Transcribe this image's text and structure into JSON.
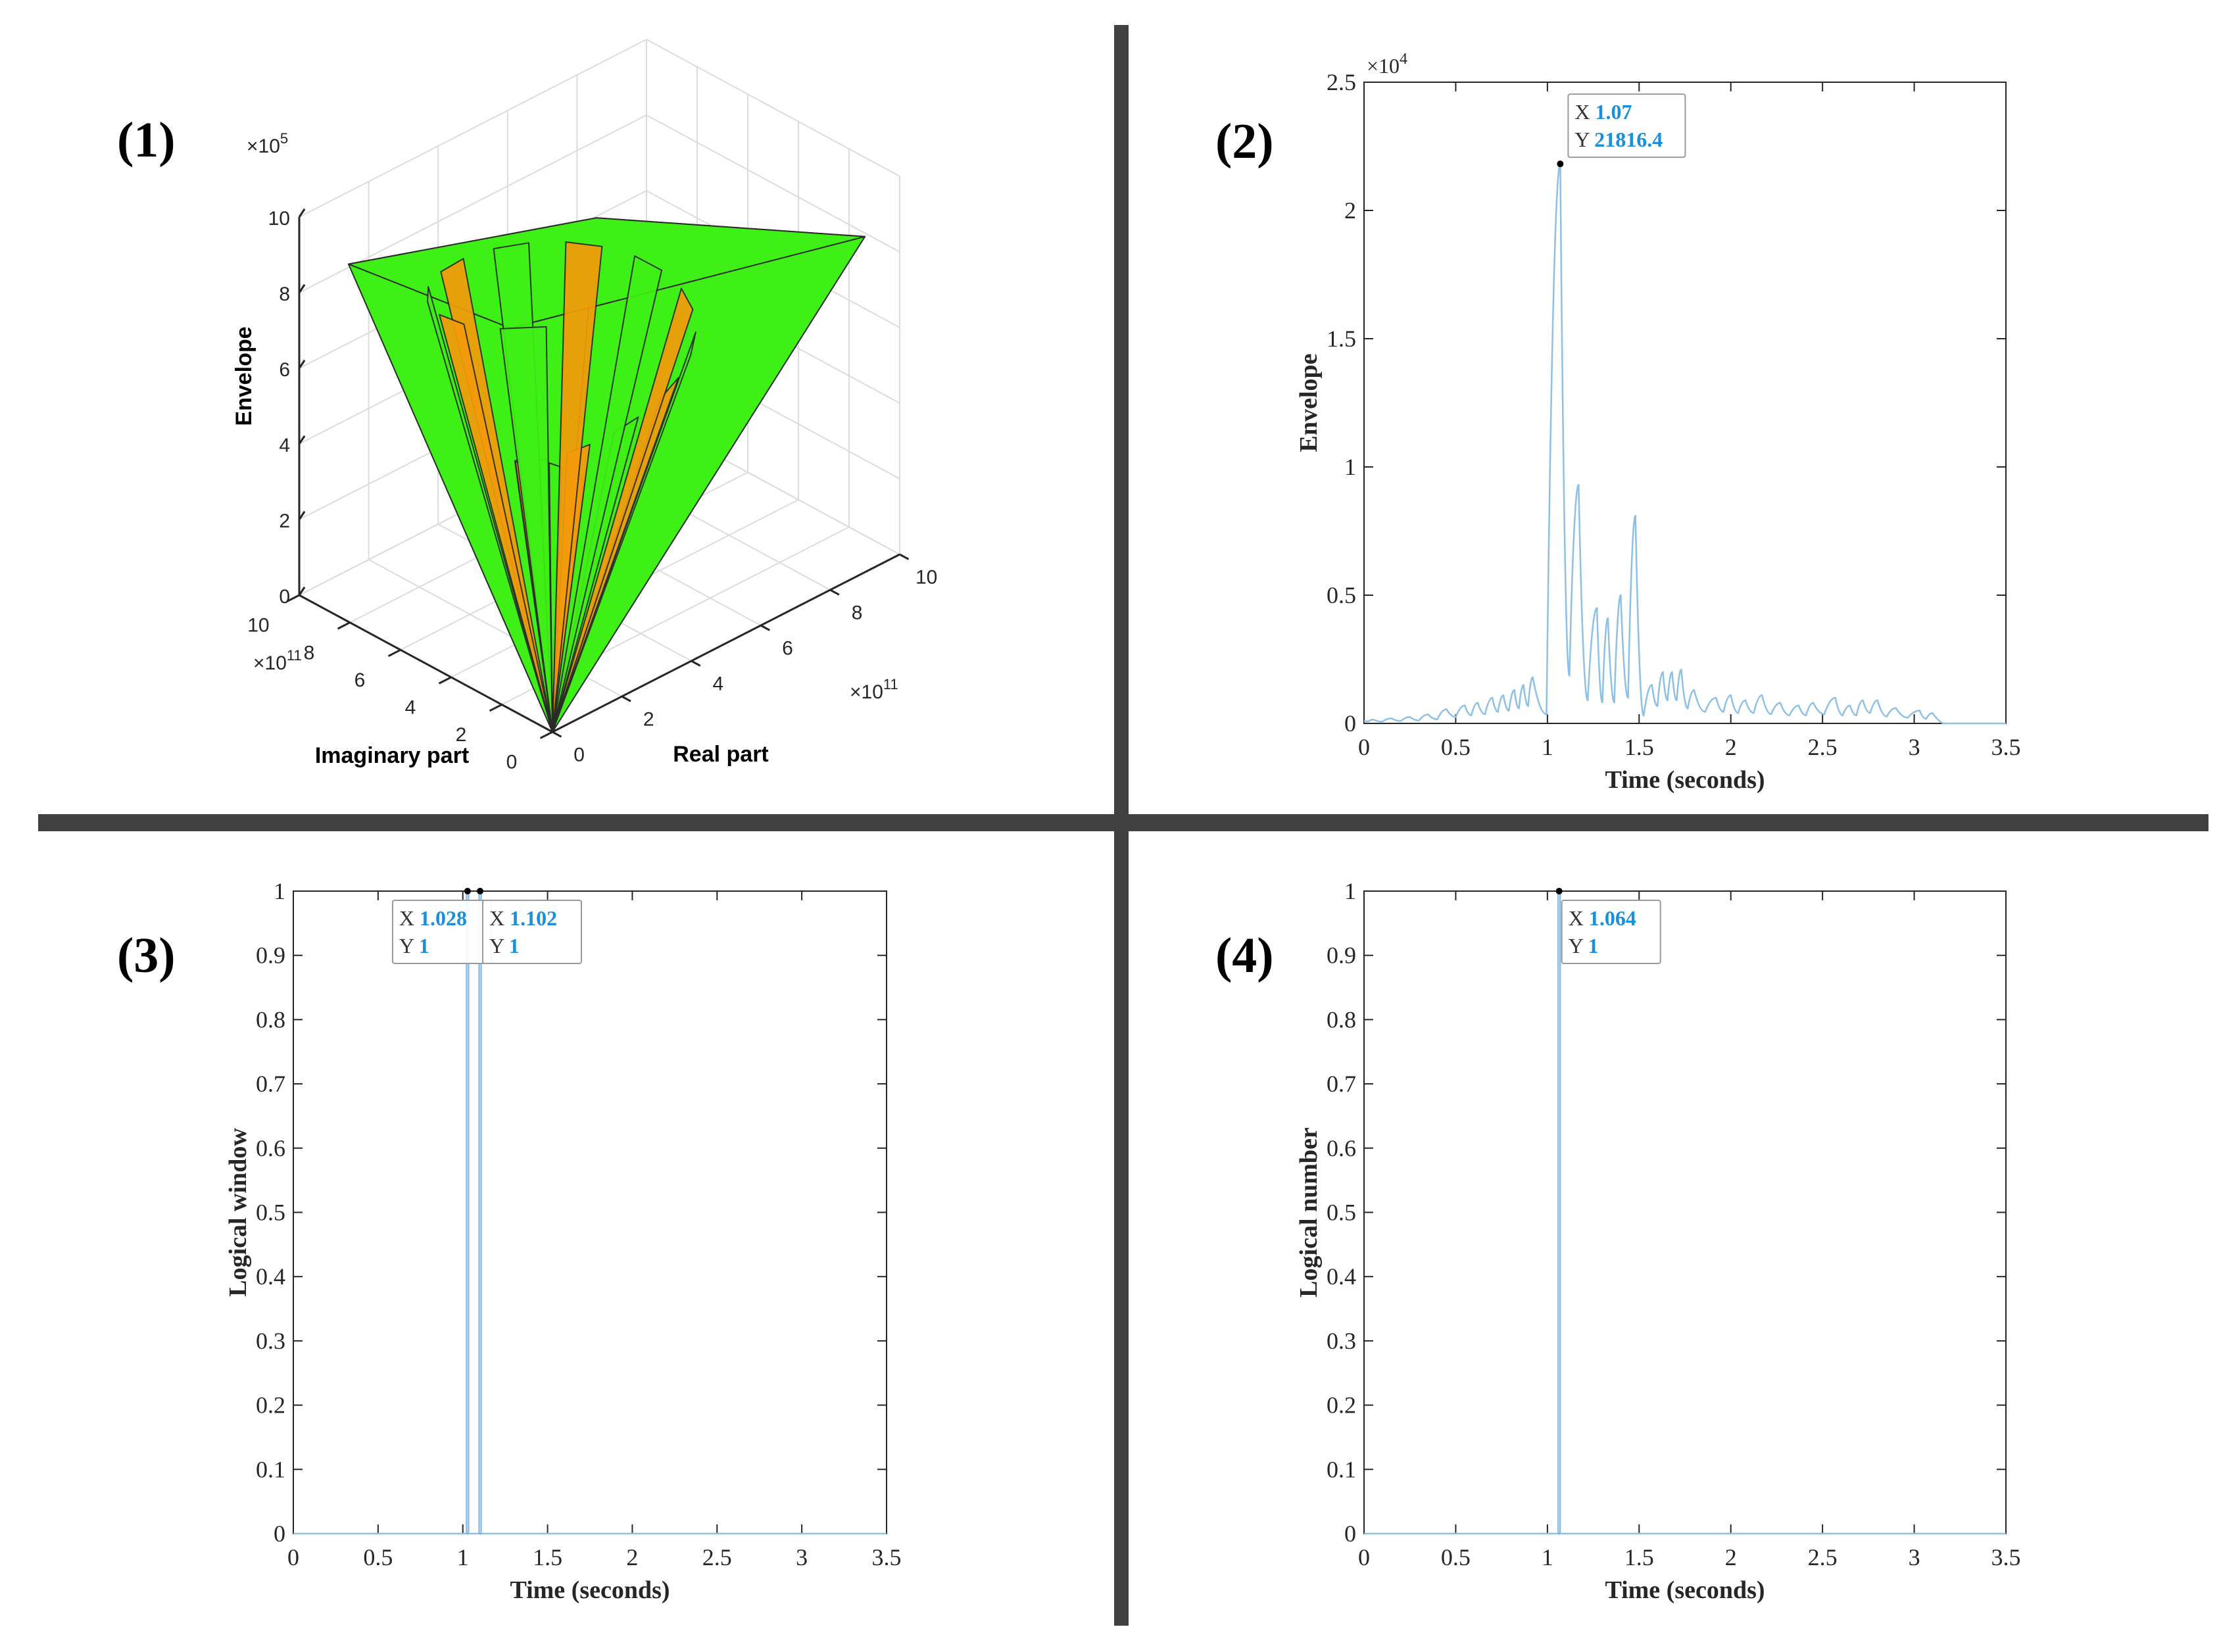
{
  "colors": {
    "divider": "#404040",
    "line": "#8ec0e6",
    "datatip_value": "#1a8fdc",
    "axis": "#262626",
    "grid3d": "#dcdcdc",
    "surface_green": "#3ff016",
    "surface_yellow": "#e2f50e",
    "surface_orange": "#f59a0a",
    "surface_red": "#f04a10"
  },
  "chart_data": [
    {
      "id": "1",
      "panel_label": "(1)",
      "type": "surface3d",
      "xlabel": "Real part",
      "ylabel": "Imaginary part",
      "zlabel": "Envelope",
      "x_exponent": "×10",
      "x_exponent_power": "11",
      "y_exponent": "×10",
      "y_exponent_power": "11",
      "z_exponent": "×10",
      "z_exponent_power": "5",
      "xlim": [
        0,
        10
      ],
      "ylim": [
        0,
        10
      ],
      "zlim": [
        0,
        10
      ],
      "x_ticks": [
        "0",
        "2",
        "4",
        "6",
        "8",
        "10"
      ],
      "y_ticks": [
        "0",
        "2",
        "4",
        "6",
        "8",
        "10"
      ],
      "z_ticks": [
        "0",
        "2",
        "4",
        "6",
        "8",
        "10"
      ],
      "grid": true
    },
    {
      "id": "2",
      "panel_label": "(2)",
      "type": "line",
      "xlabel": "Time (seconds)",
      "ylabel": "Envelope",
      "y_exponent": "×10",
      "y_exponent_power": "4",
      "xlim": [
        0,
        3.5
      ],
      "ylim": [
        0,
        25000
      ],
      "x_ticks": [
        "0",
        "0.5",
        "1",
        "1.5",
        "2",
        "2.5",
        "3",
        "3.5"
      ],
      "y_ticks": [
        "0",
        "0.5",
        "1",
        "1.5",
        "2",
        "2.5"
      ],
      "grid": false,
      "series": [
        {
          "peaks": [
            [
              0.05,
              150
            ],
            [
              0.15,
              200
            ],
            [
              0.25,
              250
            ],
            [
              0.35,
              350
            ],
            [
              0.45,
              550
            ],
            [
              0.55,
              700
            ],
            [
              0.62,
              800
            ],
            [
              0.7,
              1000
            ],
            [
              0.76,
              1100
            ],
            [
              0.82,
              1300
            ],
            [
              0.87,
              1500
            ],
            [
              0.92,
              1800
            ],
            [
              1.07,
              21816.4
            ],
            [
              1.17,
              9300
            ],
            [
              1.27,
              4500
            ],
            [
              1.33,
              4100
            ],
            [
              1.4,
              5000
            ],
            [
              1.48,
              8100
            ],
            [
              1.57,
              1500
            ],
            [
              1.63,
              2000
            ],
            [
              1.68,
              2000
            ],
            [
              1.73,
              2100
            ],
            [
              1.8,
              1300
            ],
            [
              1.92,
              1000
            ],
            [
              2.0,
              1100
            ],
            [
              2.08,
              900
            ],
            [
              2.17,
              1100
            ],
            [
              2.27,
              800
            ],
            [
              2.37,
              700
            ],
            [
              2.45,
              800
            ],
            [
              2.57,
              1000
            ],
            [
              2.65,
              700
            ],
            [
              2.72,
              900
            ],
            [
              2.8,
              900
            ],
            [
              2.9,
              600
            ],
            [
              3.03,
              500
            ],
            [
              3.1,
              400
            ]
          ]
        }
      ],
      "datatips": [
        {
          "x": "1.07",
          "y": "21816.4"
        }
      ]
    },
    {
      "id": "3",
      "panel_label": "(3)",
      "type": "line",
      "xlabel": "Time (seconds)",
      "ylabel": "Logical window",
      "xlim": [
        0,
        3.5
      ],
      "ylim": [
        0,
        1
      ],
      "x_ticks": [
        "0",
        "0.5",
        "1",
        "1.5",
        "2",
        "2.5",
        "3",
        "3.5"
      ],
      "y_ticks": [
        "0",
        "0.1",
        "0.2",
        "0.3",
        "0.4",
        "0.5",
        "0.6",
        "0.7",
        "0.8",
        "0.9",
        "1"
      ],
      "grid": false,
      "series": [
        {
          "pulses": [
            [
              1.028,
              1
            ],
            [
              1.102,
              1
            ]
          ]
        }
      ],
      "datatips": [
        {
          "x": "1.028",
          "y": "1"
        },
        {
          "x": "1.102",
          "y": "1"
        }
      ]
    },
    {
      "id": "4",
      "panel_label": "(4)",
      "type": "line",
      "xlabel": "Time (seconds)",
      "ylabel": "Logical number",
      "xlim": [
        0,
        3.5
      ],
      "ylim": [
        0,
        1
      ],
      "x_ticks": [
        "0",
        "0.5",
        "1",
        "1.5",
        "2",
        "2.5",
        "3",
        "3.5"
      ],
      "y_ticks": [
        "0",
        "0.1",
        "0.2",
        "0.3",
        "0.4",
        "0.5",
        "0.6",
        "0.7",
        "0.8",
        "0.9",
        "1"
      ],
      "grid": false,
      "series": [
        {
          "pulses": [
            [
              1.064,
              1
            ]
          ]
        }
      ],
      "datatips": [
        {
          "x": "1.064",
          "y": "1"
        }
      ]
    }
  ]
}
